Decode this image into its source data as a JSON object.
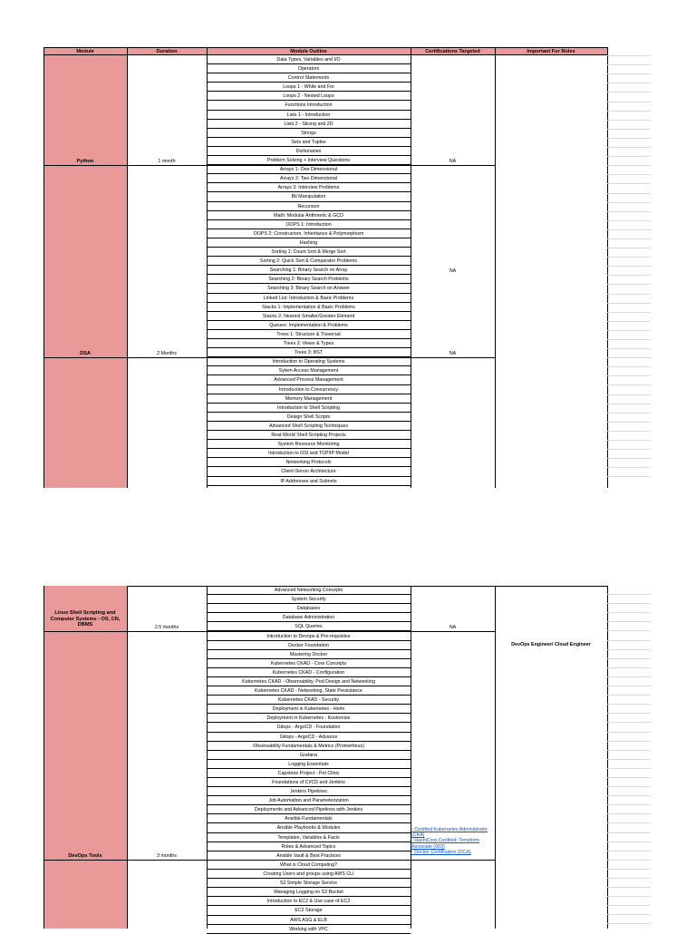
{
  "headers": {
    "module": "Module",
    "duration": "Duration",
    "outline": "Module Outline",
    "certs": "Certifications Targeted",
    "roles": "Important For Roles"
  },
  "top": {
    "python": {
      "module": "Python",
      "duration": "1 month",
      "certs": "NA",
      "topics": [
        "Data Types, Variables and I/O",
        "Operators",
        "Control Statements",
        "Loops 1 - While and For",
        "Loops 2 - Nested Loops",
        "Functions Introduction",
        "Lists 1 - Introduction",
        "Lists 2 - Slicing and 2D",
        "Strings",
        "Sets and Tuples",
        "Dictionaries",
        "Problem Solving + Interview Questions"
      ]
    },
    "dsa": {
      "module": "DSA",
      "duration": "2 Months",
      "certs_mid": "NA",
      "certs": "NA",
      "topics": [
        "Arrays 1: One Dimensional",
        "Arrays 2: Two Dimensional",
        "Arrays 3: Interview Problems",
        "Bit Manipulation",
        "Recursion",
        "Math: Modular Arithmetic & GCD",
        "OOPS 1: Introduction",
        "OOPS 2: Constructors, Inheritance & Polymorphism",
        "Hashing",
        "Sorting 1: Count Sort & Merge Sort",
        "Sorting 2: Quick Sort & Comparator Problems",
        "Searching 1: Binary Search on Array",
        "Searching 2: Binary Search Problems",
        "Searching 3: Binary Search on Answer",
        "Linked List: Introduction & Basic Problems",
        "Stacks 1: Implementation & Basic Problems",
        "Stacks 2: Nearest Smaller/Greater Element",
        "Queues: Implementation & Problems",
        "Trees 1: Structure & Traversal",
        "Trees 2: Views & Types",
        "Trees 3: BST"
      ]
    },
    "linux_topics": [
      "Introduction to Operating Systems",
      "Sytem Access Management",
      "Advanced Process Management",
      "Introduction to Concurrency",
      "Memory Management",
      "Introduction to Shell Scripting",
      "Design Shell Scripts",
      "Advanced Shell Scripting Techniques",
      "Real-World Shell Scripting Projects",
      "System Resource Monitoring",
      "Introduction to OSI and TCP/IP Model",
      "Networking Protocols",
      "Client-Server Architecture",
      "IP Addresses and Subnets"
    ]
  },
  "bottom": {
    "linux": {
      "module": "Linux Shell Scripting and Computer Systems - OS, CN, DBMS",
      "duration": "2.5 months",
      "certs": "NA",
      "topics": [
        "Advanced Networking Concepts",
        "System Security",
        "Databases",
        "Database Administration",
        "SQL Queries"
      ]
    },
    "roles": "DevOps Engineer/ Cloud Engineer",
    "devops": {
      "module": "DevOps Tools",
      "duration": "3 months",
      "certs_links": [
        "- Certified Kubernetes Administrator (CKA)",
        "- HashiCorp Certified: Terraform Associate (003)",
        "- Docker Certification (DCA)"
      ],
      "topics": [
        "Introduction to Devops & Pre-requisites",
        "Docker Foundation",
        "Mastering Docker",
        "Kubernetes CKAD - Core Concepts",
        "Kubernetes CKAD - Configuration",
        "Kubernetes CKAD - Observability, Pod Design and Networking",
        "Kubernetes CKAD - Networking, State Persistance",
        "Kubernetes CKAD - Security",
        "Deployment in Kubernetes - Helm",
        "Deployment in Kubernetes - Kustomize",
        "Gitops - ArgoCD - Foundation",
        "Gitops - ArgoCD - Advance",
        "Observability Fundamentals & Metrics (Prometheus)",
        "Grafana",
        "Logging Essentials",
        "Capstone Project - Pet Clinic",
        "Foundations of CI/CD and Jenkins",
        "Jenkins Pipelines",
        "Job Automation and Parameterization",
        "Deployments and Advanced Pipelines with Jenkins",
        "Ansible Fundamentals",
        "Ansible Playbooks & Modules",
        "Templates, Variables & Facts",
        "Roles & Advanced Topics",
        "Ansible Vault & Best Practices"
      ]
    },
    "aws_topics": [
      "What is Cloud Computing?",
      "Creating Users and groups using AWS CLI",
      "S3 Simple Storage Service",
      "Managing Logging on S3 Bucket",
      "Introduction to EC2 & Use case of EC2",
      "EC2 Storage",
      "AWS ASG & ELB",
      "Working with VPC"
    ]
  }
}
